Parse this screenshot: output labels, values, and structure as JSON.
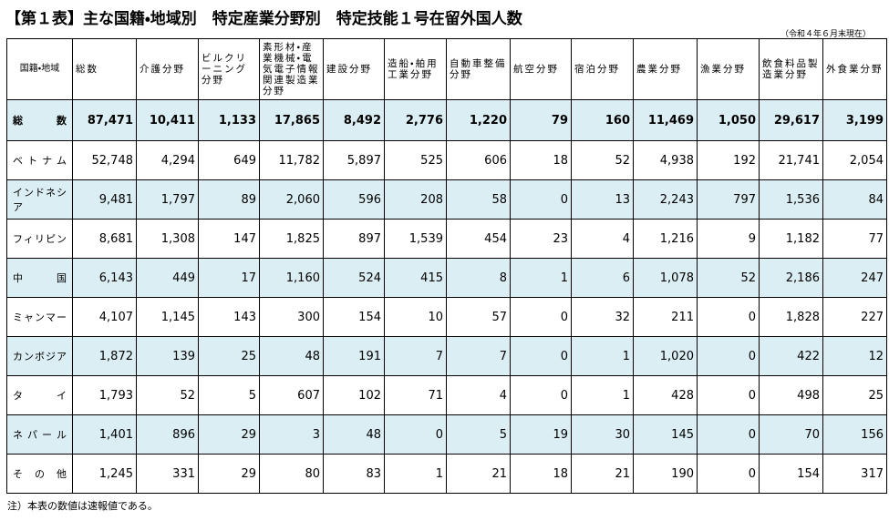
{
  "header": {
    "title": "【第１表】主な国籍・地域別　特定産業分野別　特定技能１号在留外国人数",
    "date": "（令和４年６月末現在）"
  },
  "table": {
    "columns": [
      "国籍・地域",
      "総数",
      "介護分野",
      "ビルクリーニング分野",
      "素形材・産業機械・電気電子情報関連製造業分野",
      "建設分野",
      "造船・舶用工業分野",
      "自動車整備分野",
      "航空分野",
      "宿泊分野",
      "農業分野",
      "漁業分野",
      "飲食料品製造業分野",
      "外食業分野"
    ],
    "rows": [
      [
        "総数",
        "87,471",
        "10,411",
        "1,133",
        "17,865",
        "8,492",
        "2,776",
        "1,220",
        "79",
        "160",
        "11,469",
        "1,050",
        "29,617",
        "3,199"
      ],
      [
        "ベトナム",
        "52,748",
        "4,294",
        "649",
        "11,782",
        "5,897",
        "525",
        "606",
        "18",
        "52",
        "4,938",
        "192",
        "21,741",
        "2,054"
      ],
      [
        "インドネシア",
        "9,481",
        "1,797",
        "89",
        "2,060",
        "596",
        "208",
        "58",
        "0",
        "13",
        "2,243",
        "797",
        "1,536",
        "84"
      ],
      [
        "フィリピン",
        "8,681",
        "1,308",
        "147",
        "1,825",
        "897",
        "1,539",
        "454",
        "23",
        "4",
        "1,216",
        "9",
        "1,182",
        "77"
      ],
      [
        "中国",
        "6,143",
        "449",
        "17",
        "1,160",
        "524",
        "415",
        "8",
        "1",
        "6",
        "1,078",
        "52",
        "2,186",
        "247"
      ],
      [
        "ミャンマー",
        "4,107",
        "1,145",
        "143",
        "300",
        "154",
        "10",
        "57",
        "0",
        "32",
        "211",
        "0",
        "1,828",
        "227"
      ],
      [
        "カンボジア",
        "1,872",
        "139",
        "25",
        "48",
        "191",
        "7",
        "7",
        "0",
        "1",
        "1,020",
        "0",
        "422",
        "12"
      ],
      [
        "タイ",
        "1,793",
        "52",
        "5",
        "607",
        "102",
        "71",
        "4",
        "0",
        "1",
        "428",
        "0",
        "498",
        "25"
      ],
      [
        "ネパール",
        "1,401",
        "896",
        "29",
        "3",
        "48",
        "0",
        "5",
        "19",
        "30",
        "145",
        "0",
        "70",
        "156"
      ],
      [
        "その他",
        "1,245",
        "331",
        "29",
        "80",
        "83",
        "1",
        "21",
        "18",
        "21",
        "190",
        "0",
        "154",
        "317"
      ]
    ]
  },
  "note": "注）本表の数値は速報値である。"
}
